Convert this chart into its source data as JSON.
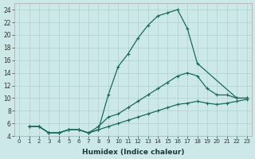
{
  "xlabel": "Humidex (Indice chaleur)",
  "bg_color": "#cce8e8",
  "grid_color": "#b0d0d0",
  "line_color": "#1a6b5a",
  "xlim": [
    -0.5,
    23.5
  ],
  "ylim": [
    4,
    25
  ],
  "xticks": [
    0,
    1,
    2,
    3,
    4,
    5,
    6,
    7,
    8,
    9,
    10,
    11,
    12,
    13,
    14,
    15,
    16,
    17,
    18,
    19,
    20,
    21,
    22,
    23
  ],
  "yticks": [
    4,
    6,
    8,
    10,
    12,
    14,
    16,
    18,
    20,
    22,
    24
  ],
  "line1_x": [
    1,
    2,
    3,
    4,
    5,
    6,
    7,
    8,
    9,
    10,
    11,
    12,
    13,
    14,
    15,
    16,
    17,
    18,
    22,
    23
  ],
  "line1_y": [
    5.5,
    5.5,
    4.5,
    4.5,
    5.0,
    5.0,
    4.5,
    5.0,
    10.5,
    15.0,
    17.0,
    19.5,
    21.5,
    23.0,
    23.5,
    24.0,
    21.0,
    15.5,
    10.0,
    10.0
  ],
  "line2_x": [
    1,
    2,
    3,
    4,
    5,
    6,
    7,
    8,
    9,
    10,
    11,
    12,
    13,
    14,
    15,
    16,
    17,
    18,
    19,
    20,
    21,
    22,
    23
  ],
  "line2_y": [
    5.5,
    5.5,
    4.5,
    4.5,
    5.0,
    5.0,
    4.5,
    5.5,
    7.0,
    7.5,
    8.5,
    9.5,
    10.5,
    11.5,
    12.5,
    13.5,
    14.0,
    13.5,
    11.5,
    10.5,
    10.5,
    10.0,
    10.0
  ],
  "line3_x": [
    1,
    2,
    3,
    4,
    5,
    6,
    7,
    8,
    9,
    10,
    11,
    12,
    13,
    14,
    15,
    16,
    17,
    18,
    19,
    20,
    21,
    22,
    23
  ],
  "line3_y": [
    5.5,
    5.5,
    4.5,
    4.5,
    5.0,
    5.0,
    4.5,
    5.0,
    5.5,
    6.0,
    6.5,
    7.0,
    7.5,
    8.0,
    8.5,
    9.0,
    9.2,
    9.5,
    9.2,
    9.0,
    9.2,
    9.5,
    9.8
  ]
}
